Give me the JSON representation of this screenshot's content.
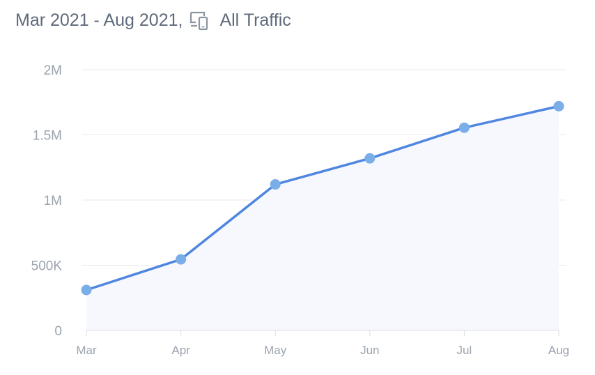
{
  "header": {
    "date_range": "Mar 2021 - Aug 2021,",
    "segment_icon": "devices-icon",
    "segment_label": "All Traffic"
  },
  "colors": {
    "line": "#4f86e0",
    "marker": "#7aaee9",
    "area": "#f6f8fd",
    "grid": "#e8eaee",
    "text": "#5f6b7a",
    "tick": "#9ba3ad"
  },
  "chart_data": {
    "type": "area",
    "categories": [
      "Mar",
      "Apr",
      "May",
      "Jun",
      "Jul",
      "Aug"
    ],
    "values": [
      310000,
      545000,
      1120000,
      1320000,
      1555000,
      1720000
    ],
    "yticks": [
      0,
      500000,
      1000000,
      1500000,
      2000000
    ],
    "ytick_labels": [
      "0",
      "500K",
      "1M",
      "1.5M",
      "2M"
    ],
    "ylim": [
      0,
      2000000
    ],
    "grid": true,
    "legend": "none"
  }
}
